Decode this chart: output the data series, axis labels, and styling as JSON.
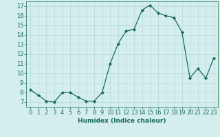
{
  "x": [
    0,
    1,
    2,
    3,
    4,
    5,
    6,
    7,
    8,
    9,
    10,
    11,
    12,
    13,
    14,
    15,
    16,
    17,
    18,
    19,
    20,
    21,
    22,
    23
  ],
  "y": [
    8.3,
    7.7,
    7.1,
    7.0,
    8.0,
    8.0,
    7.5,
    7.1,
    7.1,
    8.0,
    11.0,
    13.1,
    14.4,
    14.6,
    16.6,
    17.1,
    16.3,
    16.0,
    15.8,
    14.3,
    9.5,
    10.5,
    9.5,
    11.6
  ],
  "line_color": "#1a6b5a",
  "marker": "D",
  "marker_size": 2.2,
  "bg_color": "#d4eeee",
  "grid_color": "#b8d8d8",
  "xlabel": "Humidex (Indice chaleur)",
  "ylim": [
    6.5,
    17.5
  ],
  "yticks": [
    7,
    8,
    9,
    10,
    11,
    12,
    13,
    14,
    15,
    16,
    17
  ],
  "xlim": [
    -0.5,
    23.5
  ],
  "xticks": [
    0,
    1,
    2,
    3,
    4,
    5,
    6,
    7,
    8,
    9,
    10,
    11,
    12,
    13,
    14,
    15,
    16,
    17,
    18,
    19,
    20,
    21,
    22,
    23
  ],
  "tick_color": "#1a6b5a",
  "label_fontsize": 6.5,
  "tick_fontsize": 6.0,
  "linewidth": 0.9
}
